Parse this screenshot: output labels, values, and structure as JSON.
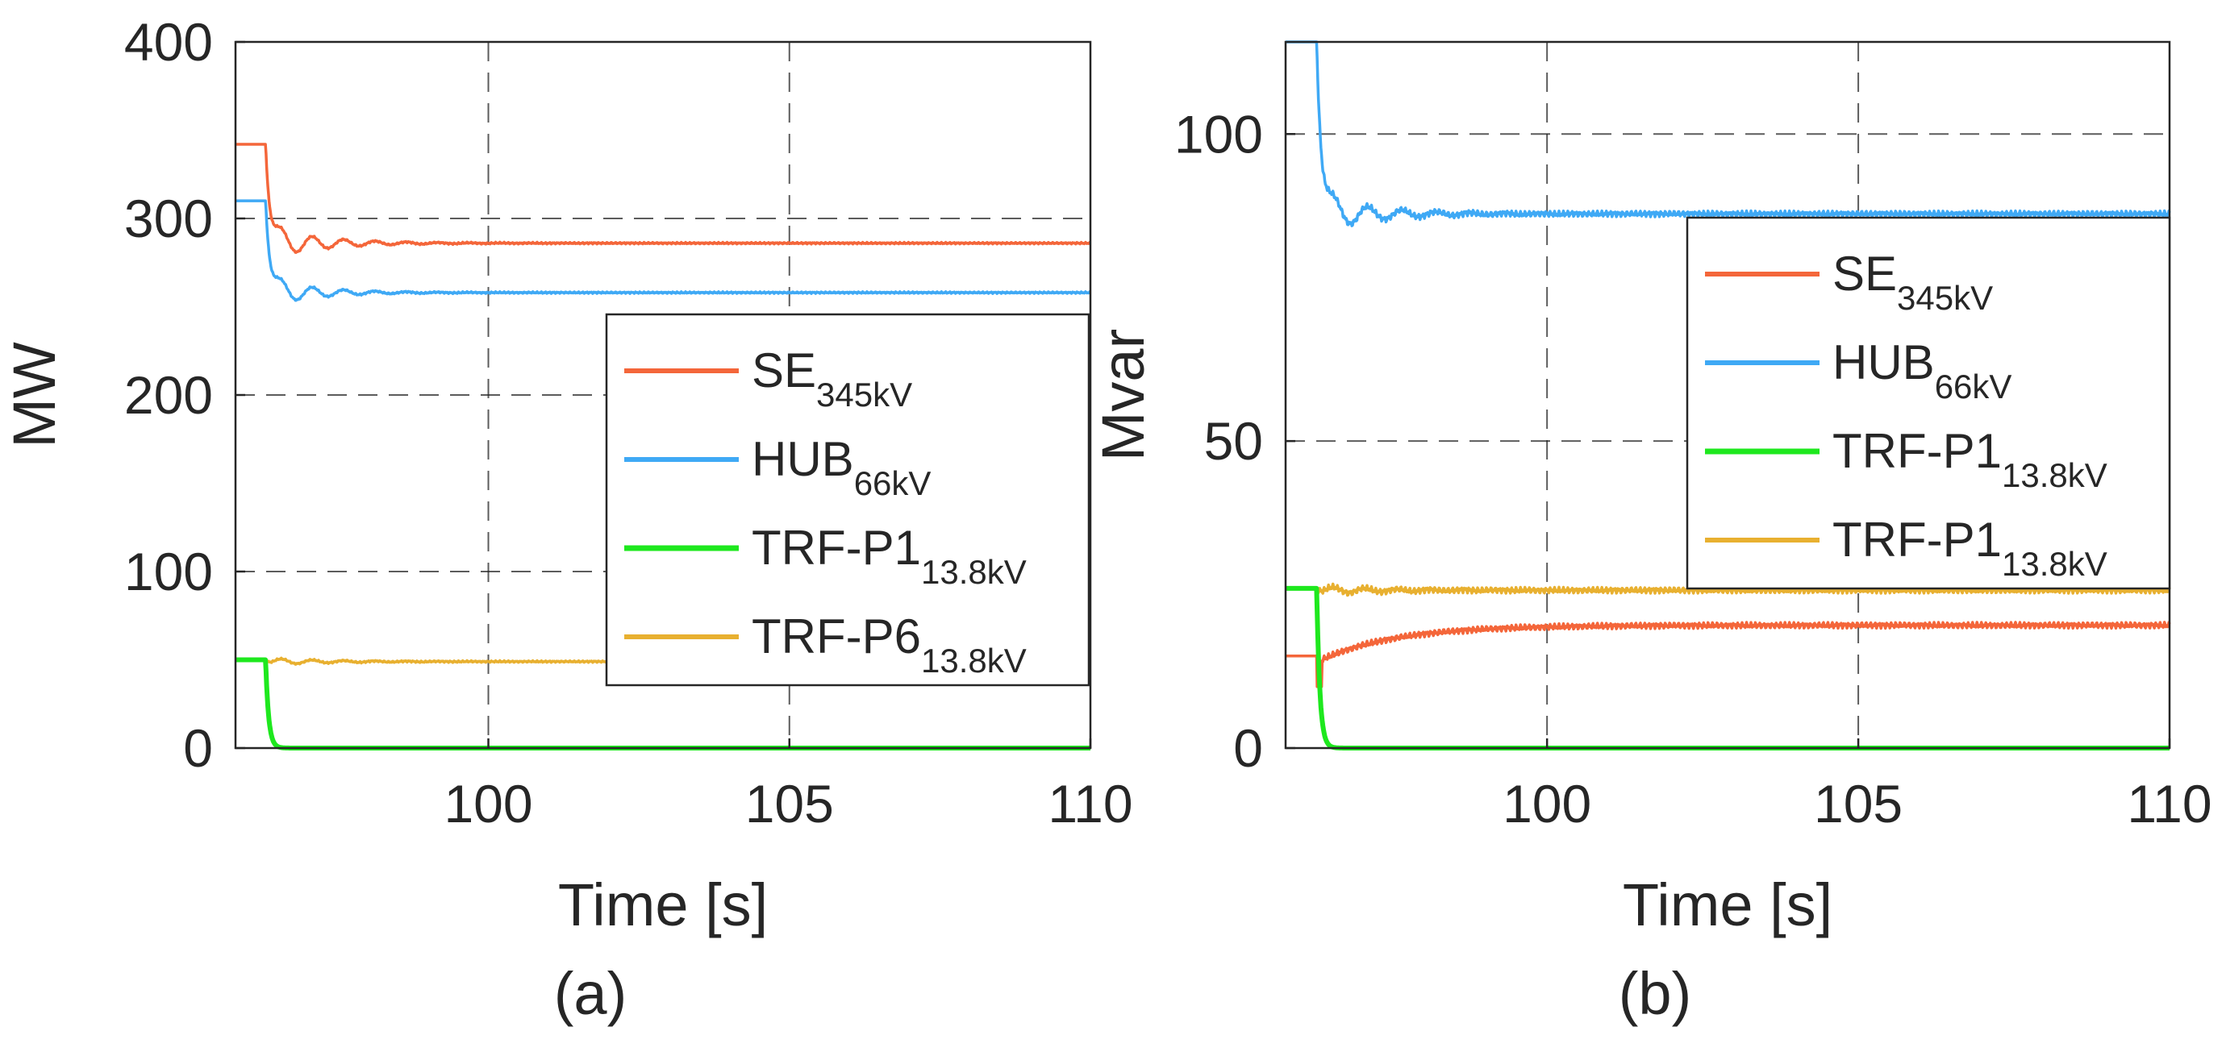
{
  "colors": {
    "se": "#f4663a",
    "hub": "#3fa9f5",
    "trf_p1": "#1ee81e",
    "trf_p": "#e8b030",
    "grid": "#262626",
    "axis": "#262626"
  },
  "chart_data": [
    {
      "type": "line",
      "panel_caption": "(a)",
      "xlabel": "Time [s]",
      "ylabel": "MW",
      "xlim": [
        95.8,
        110
      ],
      "ylim": [
        0,
        400
      ],
      "xticks": [
        100,
        105,
        110
      ],
      "xtick_labels": [
        "100",
        "105",
        "110"
      ],
      "yticks": [
        0,
        100,
        200,
        300,
        400
      ],
      "ytick_labels": [
        "0",
        "100",
        "200",
        "300",
        "400"
      ],
      "grid": true,
      "legend_position": "right-middle",
      "series": [
        {
          "key": "se",
          "legend_main": "SE",
          "legend_sub": "345kV",
          "pre_fault": 342,
          "step_time": 96.3,
          "dip": 277,
          "final": 286,
          "oscillation": 9,
          "decay": 0.9,
          "period": 0.52
        },
        {
          "key": "hub",
          "legend_main": "HUB",
          "legend_sub": "66kV",
          "pre_fault": 310,
          "step_time": 96.3,
          "dip": 250,
          "final": 258,
          "oscillation": 10,
          "decay": 0.8,
          "period": 0.52
        },
        {
          "key": "trf_p1",
          "legend_main": "TRF-P1",
          "legend_sub": "13.8kV",
          "pre_fault": 50,
          "step_time": 96.3,
          "dip": 0,
          "final": 0,
          "oscillation": 0,
          "decay": 0.05,
          "period": 1
        },
        {
          "key": "trf_p",
          "legend_main": "TRF-P6",
          "legend_sub": "13.8kV",
          "pre_fault": 50,
          "step_time": 96.3,
          "dip": 47,
          "final": 49,
          "oscillation": 1.5,
          "decay": 1.0,
          "period": 0.52
        }
      ]
    },
    {
      "type": "line",
      "panel_caption": "(b)",
      "xlabel": "Time [s]",
      "ylabel": "Mvar",
      "xlim": [
        95.8,
        110
      ],
      "ylim": [
        0,
        115
      ],
      "xticks": [
        100,
        105,
        110
      ],
      "xtick_labels": [
        "100",
        "105",
        "110"
      ],
      "yticks": [
        0,
        50,
        100
      ],
      "ytick_labels": [
        "0",
        "50",
        "100"
      ],
      "grid": true,
      "legend_position": "right-middle",
      "series": [
        {
          "key": "se",
          "legend_main": "SE",
          "legend_sub": "345kV",
          "pre_fault": 15,
          "step_time": 96.3,
          "dip": 14,
          "final": 20,
          "oscillation": 2,
          "decay": 1.6,
          "period": 0.4
        },
        {
          "key": "hub",
          "legend_main": "HUB",
          "legend_sub": "66kV",
          "pre_fault": 115,
          "step_time": 96.3,
          "dip": 84,
          "final": 87,
          "oscillation": 2.5,
          "decay": 0.9,
          "period": 0.55
        },
        {
          "key": "trf_p1",
          "legend_main": "TRF-P1",
          "legend_sub": "13.8kV",
          "pre_fault": 26,
          "step_time": 96.3,
          "dip": 0,
          "final": 0,
          "oscillation": 0,
          "decay": 0.05,
          "period": 1
        },
        {
          "key": "trf_p",
          "legend_main": "TRF-P1",
          "legend_sub": "13.8kV",
          "pre_fault": 26,
          "step_time": 96.3,
          "dip": 25,
          "final": 25.7,
          "oscillation": 0.8,
          "decay": 1.0,
          "period": 0.52
        }
      ]
    }
  ]
}
